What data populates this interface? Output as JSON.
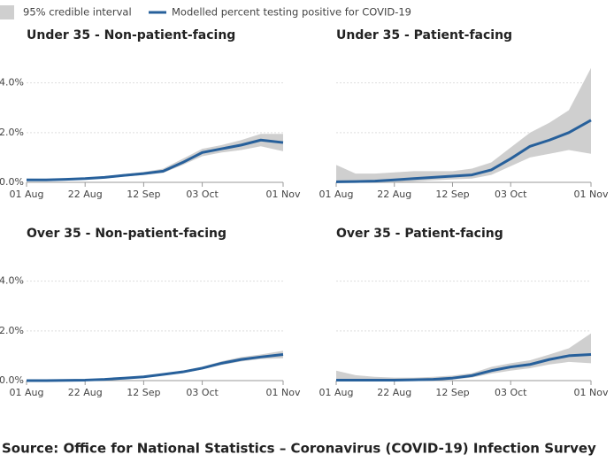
{
  "legend": [
    {
      "name": "95% credible interval",
      "color": "#cfcfcf"
    },
    {
      "name": "Modelled percent testing positive for COVID-19",
      "color": "#27609b"
    }
  ],
  "source": "Source: Office for National Statistics – Coronavirus (COVID-19) Infection Survey",
  "axes": {
    "xlim": [
      0,
      92
    ],
    "xticks": [
      {
        "value": 0,
        "label": "01 Aug"
      },
      {
        "value": 21,
        "label": "22 Aug"
      },
      {
        "value": 42,
        "label": "12 Sep"
      },
      {
        "value": 63,
        "label": "03 Oct"
      },
      {
        "value": 92,
        "label": "01 Nov"
      }
    ],
    "ylim": [
      0,
      4.7
    ],
    "yticks": [
      {
        "value": 0,
        "label": "0.0%"
      },
      {
        "value": 2,
        "label": "2.0%"
      },
      {
        "value": 4,
        "label": "4.0%"
      }
    ]
  },
  "chart_data": [
    {
      "type": "band-line",
      "title": "Under 35 - Non-patient-facing",
      "x": [
        0,
        7,
        14,
        21,
        28,
        35,
        42,
        49,
        56,
        63,
        70,
        77,
        84,
        92
      ],
      "values": [
        0.1,
        0.1,
        0.12,
        0.15,
        0.2,
        0.28,
        0.35,
        0.45,
        0.8,
        1.2,
        1.35,
        1.5,
        1.7,
        1.6
      ],
      "lower": [
        0.05,
        0.07,
        0.09,
        0.12,
        0.16,
        0.23,
        0.3,
        0.38,
        0.7,
        1.05,
        1.2,
        1.3,
        1.45,
        1.25
      ],
      "upper": [
        0.15,
        0.13,
        0.15,
        0.18,
        0.25,
        0.33,
        0.42,
        0.55,
        0.95,
        1.35,
        1.5,
        1.7,
        1.95,
        1.95
      ]
    },
    {
      "type": "band-line",
      "title": "Under 35 - Patient-facing",
      "x": [
        0,
        7,
        14,
        21,
        28,
        35,
        42,
        49,
        56,
        63,
        70,
        77,
        84,
        92
      ],
      "values": [
        0.02,
        0.03,
        0.05,
        0.1,
        0.15,
        0.2,
        0.25,
        0.3,
        0.5,
        0.95,
        1.45,
        1.7,
        2.0,
        2.5
      ],
      "lower": [
        0,
        0,
        0,
        0.01,
        0.03,
        0.08,
        0.12,
        0.15,
        0.3,
        0.65,
        1.0,
        1.15,
        1.3,
        1.15
      ],
      "upper": [
        0.7,
        0.35,
        0.35,
        0.4,
        0.45,
        0.45,
        0.45,
        0.55,
        0.8,
        1.4,
        2.0,
        2.4,
        2.9,
        4.6
      ]
    },
    {
      "type": "band-line",
      "title": "Over 35 - Non-patient-facing",
      "x": [
        0,
        7,
        14,
        21,
        28,
        35,
        42,
        49,
        56,
        63,
        70,
        77,
        84,
        92
      ],
      "values": [
        0,
        0,
        0.01,
        0.02,
        0.05,
        0.1,
        0.15,
        0.25,
        0.35,
        0.5,
        0.7,
        0.85,
        0.95,
        1.05
      ],
      "lower": [
        0,
        0,
        0,
        0.01,
        0.03,
        0.08,
        0.12,
        0.21,
        0.3,
        0.45,
        0.63,
        0.77,
        0.87,
        0.9
      ],
      "upper": [
        0.02,
        0.02,
        0.03,
        0.04,
        0.07,
        0.12,
        0.18,
        0.29,
        0.4,
        0.56,
        0.78,
        0.95,
        1.05,
        1.2
      ]
    },
    {
      "type": "band-line",
      "title": "Over 35 - Patient-facing",
      "x": [
        0,
        7,
        14,
        21,
        28,
        35,
        42,
        49,
        56,
        63,
        70,
        77,
        84,
        92
      ],
      "values": [
        0.02,
        0.02,
        0.02,
        0.02,
        0.03,
        0.05,
        0.1,
        0.2,
        0.4,
        0.55,
        0.65,
        0.85,
        1.0,
        1.05
      ],
      "lower": [
        0,
        0,
        0,
        0,
        0,
        0.01,
        0.05,
        0.12,
        0.28,
        0.4,
        0.5,
        0.65,
        0.75,
        0.7
      ],
      "upper": [
        0.4,
        0.22,
        0.15,
        0.12,
        0.12,
        0.15,
        0.2,
        0.3,
        0.55,
        0.7,
        0.82,
        1.05,
        1.3,
        1.9
      ]
    }
  ]
}
